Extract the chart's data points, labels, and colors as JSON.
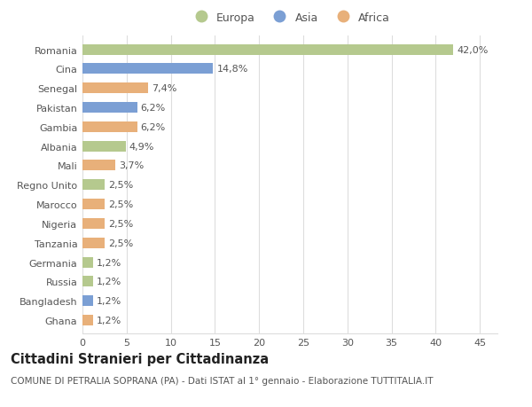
{
  "countries": [
    "Romania",
    "Cina",
    "Senegal",
    "Pakistan",
    "Gambia",
    "Albania",
    "Mali",
    "Regno Unito",
    "Marocco",
    "Nigeria",
    "Tanzania",
    "Germania",
    "Russia",
    "Bangladesh",
    "Ghana"
  ],
  "values": [
    42.0,
    14.8,
    7.4,
    6.2,
    6.2,
    4.9,
    3.7,
    2.5,
    2.5,
    2.5,
    2.5,
    1.2,
    1.2,
    1.2,
    1.2
  ],
  "labels": [
    "42,0%",
    "14,8%",
    "7,4%",
    "6,2%",
    "6,2%",
    "4,9%",
    "3,7%",
    "2,5%",
    "2,5%",
    "2,5%",
    "2,5%",
    "1,2%",
    "1,2%",
    "1,2%",
    "1,2%"
  ],
  "continents": [
    "Europa",
    "Asia",
    "Africa",
    "Asia",
    "Africa",
    "Europa",
    "Africa",
    "Europa",
    "Africa",
    "Africa",
    "Africa",
    "Europa",
    "Europa",
    "Asia",
    "Africa"
  ],
  "colors": {
    "Europa": "#b5c98e",
    "Asia": "#7b9fd4",
    "Africa": "#e8b07a"
  },
  "xlim": [
    0,
    47
  ],
  "xticks": [
    0,
    5,
    10,
    15,
    20,
    25,
    30,
    35,
    40,
    45
  ],
  "title": "Cittadini Stranieri per Cittadinanza",
  "subtitle": "COMUNE DI PETRALIA SOPRANA (PA) - Dati ISTAT al 1° gennaio - Elaborazione TUTTITALIA.IT",
  "background_color": "#ffffff",
  "grid_color": "#dddddd",
  "bar_height": 0.55,
  "label_fontsize": 8.0,
  "tick_fontsize": 8.0,
  "title_fontsize": 10.5,
  "subtitle_fontsize": 7.5,
  "legend_fontsize": 9.0
}
